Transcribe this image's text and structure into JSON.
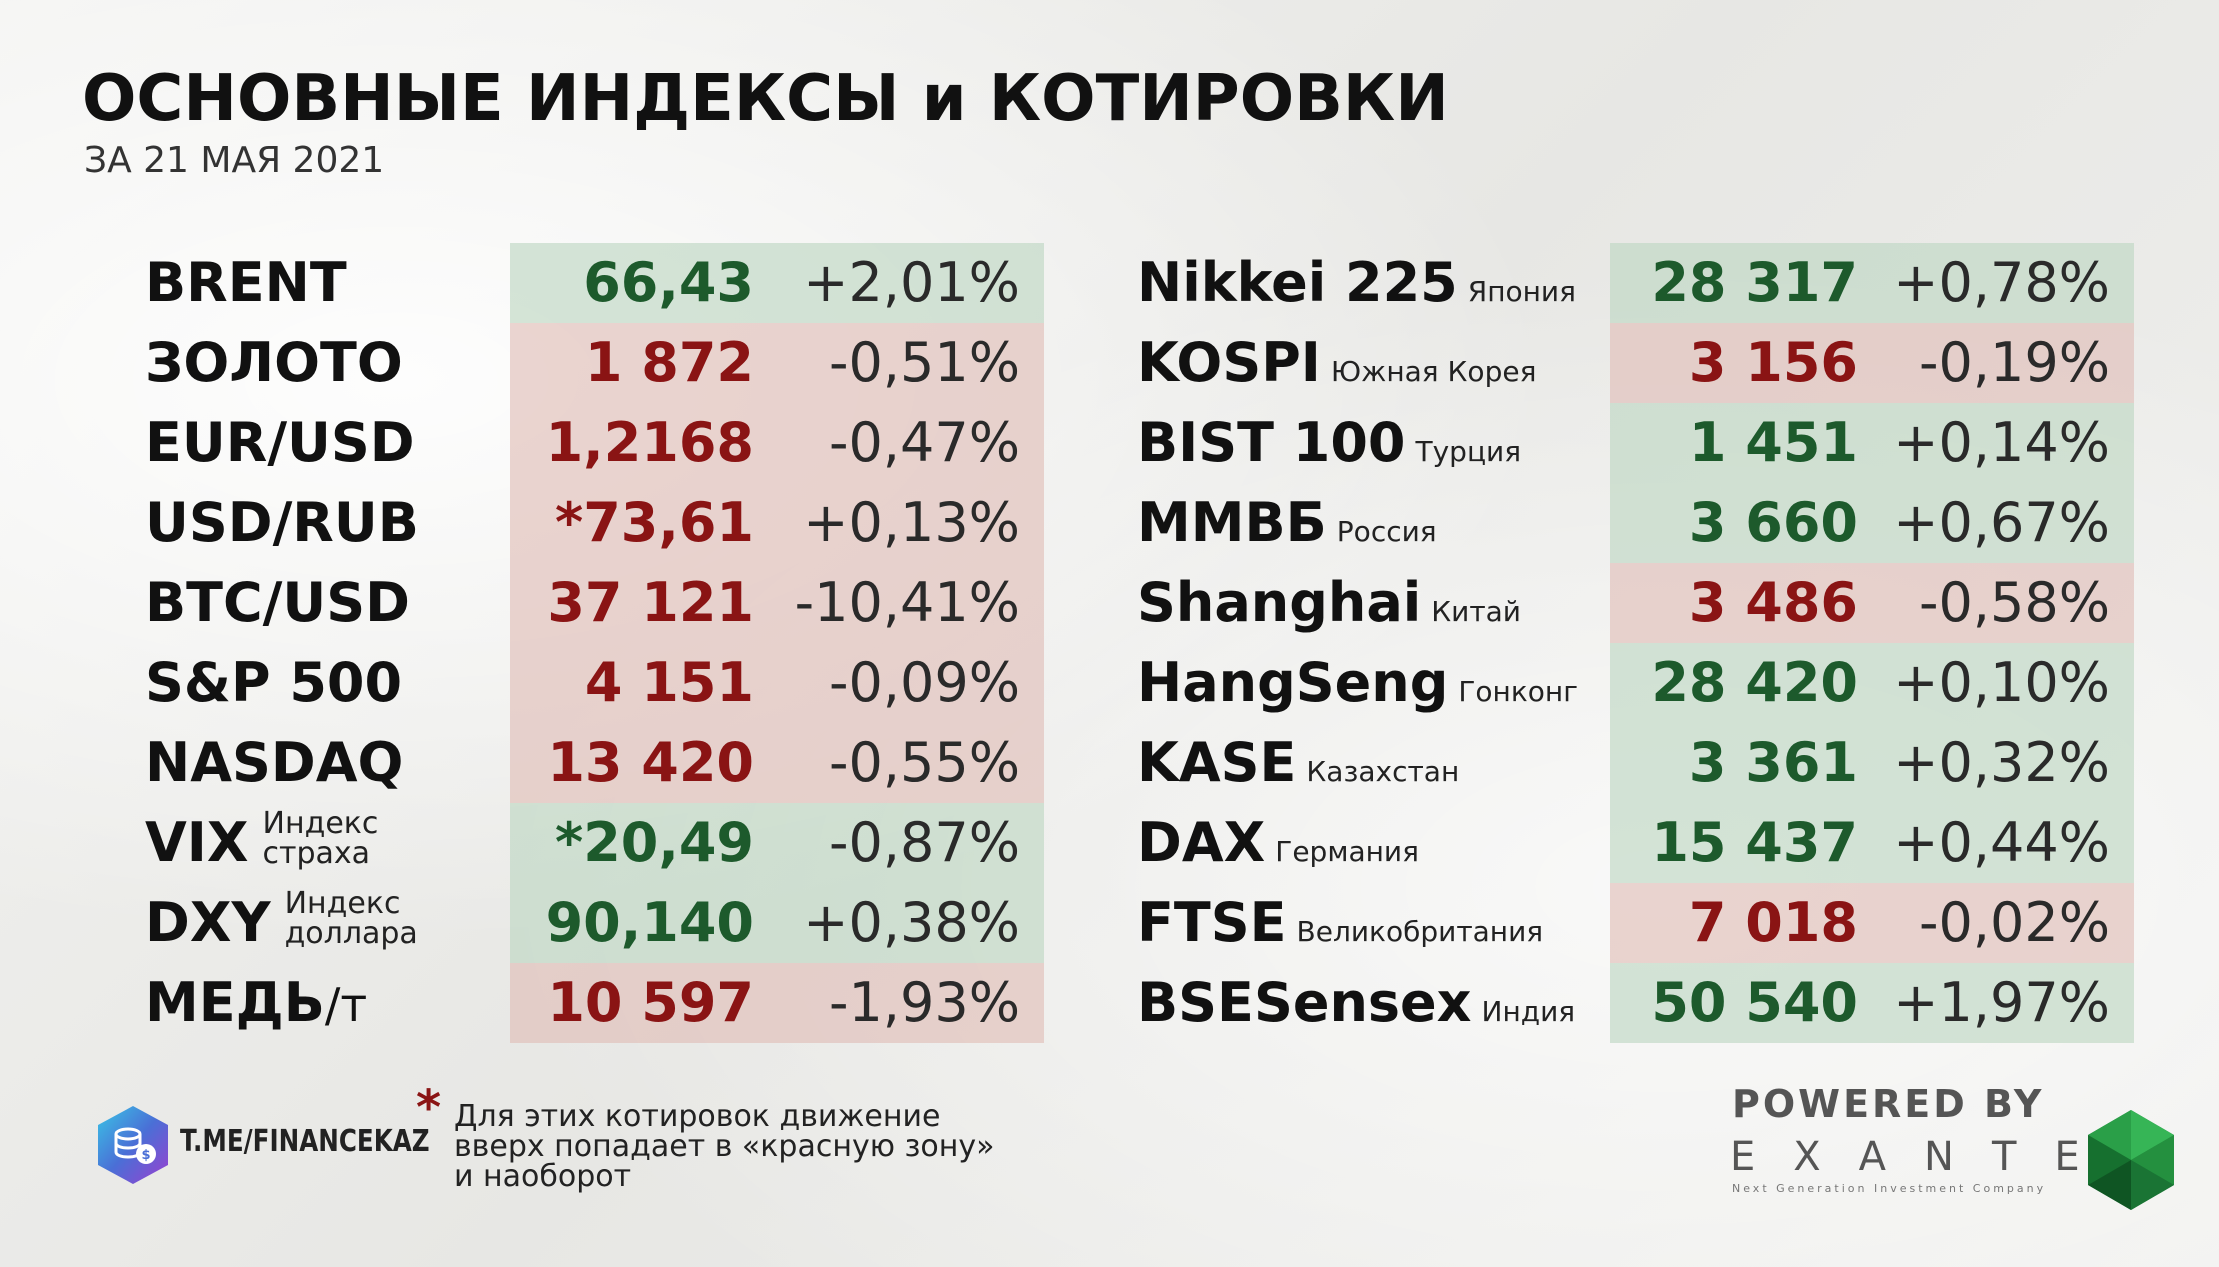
{
  "header": {
    "title": "ОСНОВНЫЕ ИНДЕКСЫ и КОТИРОВКИ",
    "subtitle": "ЗА 21 МАЯ 2021"
  },
  "colors": {
    "green_band": "#bed7c3",
    "red_band": "#e1beb9",
    "green_text": "#1d5a2c",
    "red_text": "#8a1414"
  },
  "left_table": [
    {
      "name": "BRENT",
      "value": "66,43",
      "change": "+2,01%",
      "color": "green"
    },
    {
      "name": "ЗОЛОТО",
      "value": "1 872",
      "change": "-0,51%",
      "color": "red"
    },
    {
      "name": "EUR/USD",
      "value": "1,2168",
      "change": "-0,47%",
      "color": "red"
    },
    {
      "name": "USD/RUB",
      "value": "*73,61",
      "change": "+0,13%",
      "color": "red"
    },
    {
      "name": "BTC/USD",
      "value": "37 121",
      "change": "-10,41%",
      "color": "red"
    },
    {
      "name": "S&P 500",
      "value": "4 151",
      "change": "-0,09%",
      "color": "red"
    },
    {
      "name": "NASDAQ",
      "value": "13 420",
      "change": "-0,55%",
      "color": "red"
    },
    {
      "name": "VIX",
      "sub_line1": "Индекс",
      "sub_line2": "страха",
      "value": "*20,49",
      "change": "-0,87%",
      "color": "green"
    },
    {
      "name": "DXY",
      "sub_line1": "Индекс",
      "sub_line2": "доллара",
      "value": "90,140",
      "change": "+0,38%",
      "color": "green"
    },
    {
      "name": "МЕДЬ",
      "unit": "/т",
      "value": "10 597",
      "change": "-1,93%",
      "color": "red"
    }
  ],
  "right_table": [
    {
      "name": "Nikkei 225",
      "country": "Япония",
      "value": "28 317",
      "change": "+0,78%",
      "color": "green"
    },
    {
      "name": "KOSPI",
      "country": "Южная Корея",
      "value": "3 156",
      "change": "-0,19%",
      "color": "red"
    },
    {
      "name": "BIST 100",
      "country": "Турция",
      "value": "1 451",
      "change": "+0,14%",
      "color": "green"
    },
    {
      "name": "ММВБ",
      "country": "Россия",
      "value": "3 660",
      "change": "+0,67%",
      "color": "green"
    },
    {
      "name": "Shanghai",
      "country": "Китай",
      "value": "3 486",
      "change": "-0,58%",
      "color": "red"
    },
    {
      "name": "HangSeng",
      "country": "Гонконг",
      "value": "28 420",
      "change": "+0,10%",
      "color": "green"
    },
    {
      "name": "KASE",
      "country": "Казахстан",
      "value": "3 361",
      "change": "+0,32%",
      "color": "green"
    },
    {
      "name": "DAX",
      "country": "Германия",
      "value": "15 437",
      "change": "+0,44%",
      "color": "green"
    },
    {
      "name": "FTSE",
      "country": "Великобритания",
      "value": "7 018",
      "change": "-0,02%",
      "color": "red"
    },
    {
      "name": "BSESensex",
      "country": "Индия",
      "value": "50 540",
      "change": "+1,97%",
      "color": "green"
    }
  ],
  "footer": {
    "channel": "T.ME/FINANCEKAZ",
    "star": "*",
    "note_line1": "Для этих котировок движение",
    "note_line2": "вверх попадает в «красную зону»",
    "note_line3": "и наоборот",
    "powered": "POWERED BY",
    "brand": "EXANTE",
    "brand_tagline": "Next Generation Investment Company"
  }
}
